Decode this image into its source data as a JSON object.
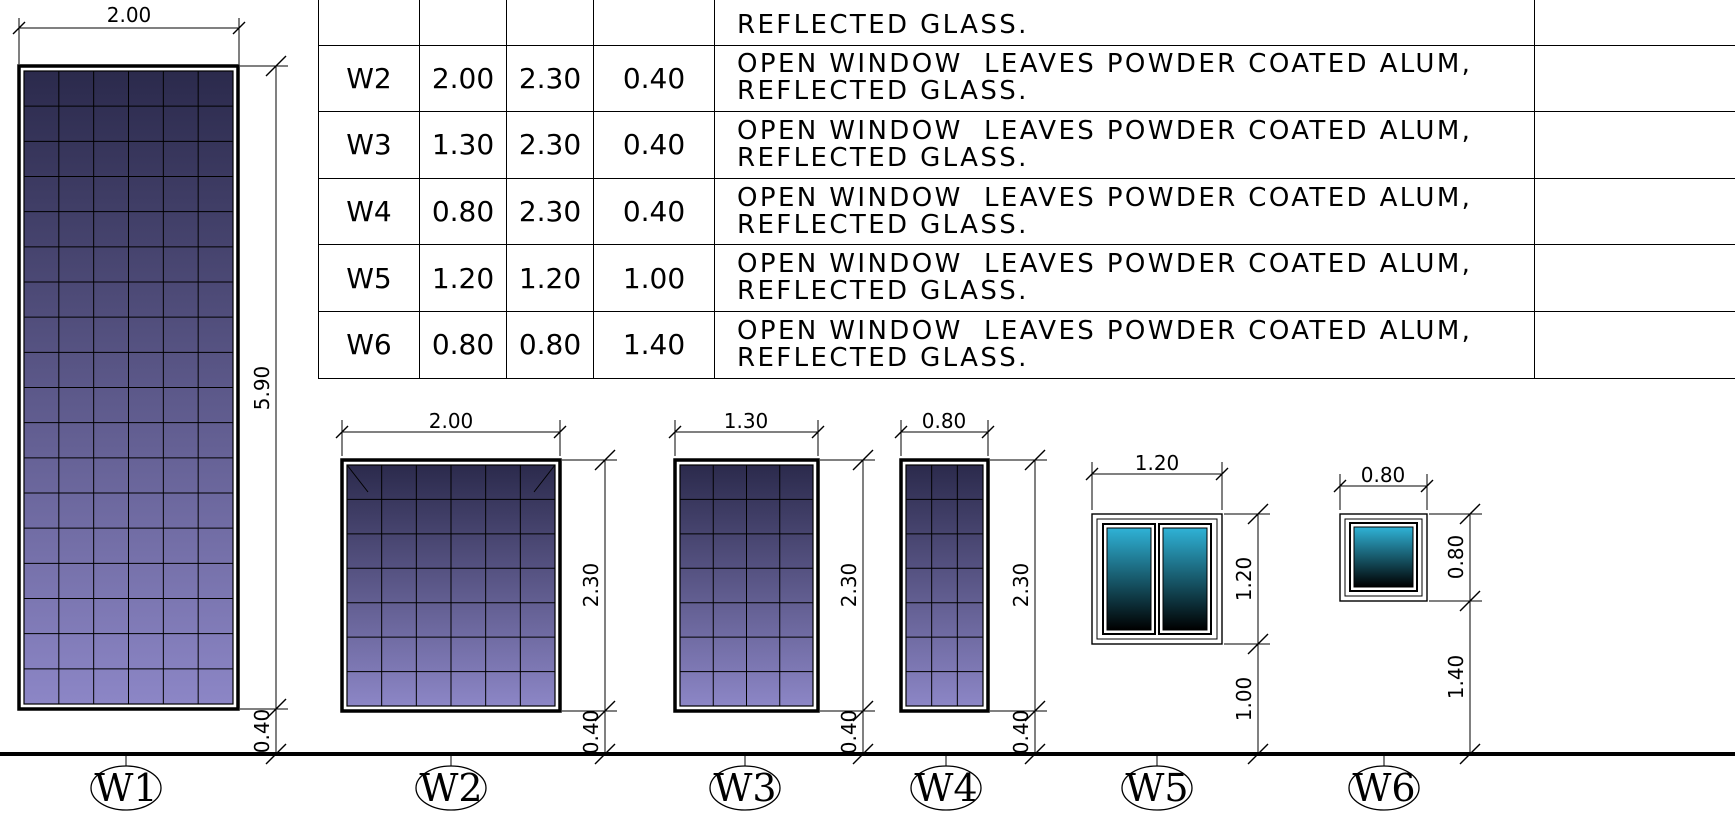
{
  "schedule": {
    "partial_top_text": "REFLECTED GLASS.",
    "rows": [
      {
        "code": "W2",
        "width": "2.00",
        "height": "2.30",
        "sill": "0.40",
        "desc_line1": "OPEN WINDOW  LEAVES POWDER COATED ALUM,",
        "desc_line2": "REFLECTED GLASS.",
        "remark": ""
      },
      {
        "code": "W3",
        "width": "1.30",
        "height": "2.30",
        "sill": "0.40",
        "desc_line1": "OPEN WINDOW  LEAVES POWDER COATED ALUM,",
        "desc_line2": "REFLECTED GLASS.",
        "remark": ""
      },
      {
        "code": "W4",
        "width": "0.80",
        "height": "2.30",
        "sill": "0.40",
        "desc_line1": "OPEN WINDOW  LEAVES POWDER COATED ALUM,",
        "desc_line2": "REFLECTED GLASS.",
        "remark": ""
      },
      {
        "code": "W5",
        "width": "1.20",
        "height": "1.20",
        "sill": "1.00",
        "desc_line1": "OPEN WINDOW  LEAVES POWDER COATED ALUM,",
        "desc_line2": "REFLECTED GLASS.",
        "remark": ""
      },
      {
        "code": "W6",
        "width": "0.80",
        "height": "0.80",
        "sill": "1.40",
        "desc_line1": "OPEN WINDOW  LEAVES POWDER COATED ALUM,",
        "desc_line2": "REFLECTED GLASS.",
        "remark": ""
      }
    ]
  },
  "elevations": [
    {
      "tag": "W1",
      "width": "2.00",
      "height": "5.90",
      "sill": "0.40"
    },
    {
      "tag": "W2",
      "width": "2.00",
      "height": "2.30",
      "sill": "0.40"
    },
    {
      "tag": "W3",
      "width": "1.30",
      "height": "2.30",
      "sill": "0.40"
    },
    {
      "tag": "W4",
      "width": "0.80",
      "height": "2.30",
      "sill": "0.40"
    },
    {
      "tag": "W5",
      "width": "1.20",
      "height": "1.20",
      "sill": "1.00"
    },
    {
      "tag": "W6",
      "width": "0.80",
      "height": "0.80",
      "sill": "1.40"
    }
  ],
  "colors": {
    "tiled_glass_top": "#2b2a4c",
    "tiled_glass_bottom": "#8c86c6",
    "clear_glass_top": "#2fb2d6",
    "clear_glass_bottom": "#000000",
    "line": "#000000"
  }
}
